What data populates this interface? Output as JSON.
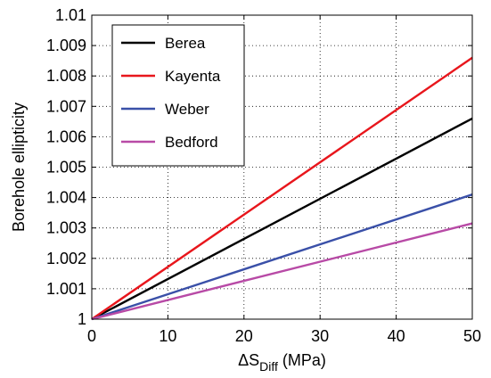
{
  "chart_data": {
    "type": "line",
    "xlabel": "ΔS",
    "xlabel_sub": "Diff",
    "xlabel_unit": " (MPa)",
    "ylabel": "Borehole ellipticity",
    "xlim": [
      0,
      50
    ],
    "ylim": [
      1,
      1.01
    ],
    "xticks": [
      0,
      10,
      20,
      30,
      40,
      50
    ],
    "xtick_labels": [
      "0",
      "10",
      "20",
      "30",
      "40",
      "50"
    ],
    "yticks": [
      1,
      1.001,
      1.002,
      1.003,
      1.004,
      1.005,
      1.006,
      1.007,
      1.008,
      1.009,
      1.01
    ],
    "ytick_labels": [
      "1",
      "1.001",
      "1.002",
      "1.003",
      "1.004",
      "1.005",
      "1.006",
      "1.007",
      "1.008",
      "1.009",
      "1.01"
    ],
    "grid": true,
    "legend_position": "top-left",
    "series": [
      {
        "name": "Berea",
        "color": "#000000",
        "x": [
          0,
          50
        ],
        "y": [
          1.0,
          1.0066
        ]
      },
      {
        "name": "Kayenta",
        "color": "#e8161c",
        "x": [
          0,
          50
        ],
        "y": [
          1.0,
          1.0086
        ]
      },
      {
        "name": "Weber",
        "color": "#3a50a8",
        "x": [
          0,
          50
        ],
        "y": [
          1.0,
          1.0041
        ]
      },
      {
        "name": "Bedford",
        "color": "#b84aa6",
        "x": [
          0,
          50
        ],
        "y": [
          1.0,
          1.00315
        ]
      }
    ]
  }
}
